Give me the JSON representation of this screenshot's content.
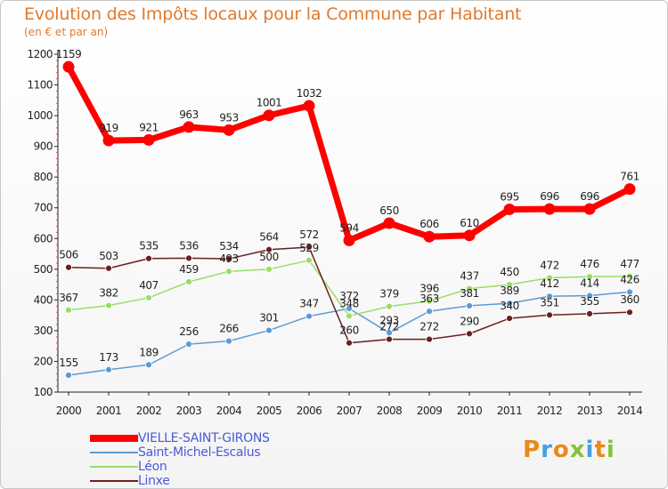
{
  "header": {
    "title": "Evolution des Impôts locaux pour la Commune par Habitant",
    "subtitle": "(en € et par an)"
  },
  "logo": {
    "text": "Proxiti",
    "letters": [
      {
        "ch": "P",
        "color": "#e88a1a"
      },
      {
        "ch": "r",
        "color": "#4aa0dc"
      },
      {
        "ch": "o",
        "color": "#e88a1a"
      },
      {
        "ch": "x",
        "color": "#86c23a"
      },
      {
        "ch": "i",
        "color": "#4aa0dc"
      },
      {
        "ch": "t",
        "color": "#e88a1a"
      },
      {
        "ch": "i",
        "color": "#86c23a"
      }
    ]
  },
  "chart_data": {
    "type": "line",
    "title": "Evolution des Impôts locaux pour la Commune par Habitant",
    "subtitle": "(en € et par an)",
    "x": [
      "2000",
      "2001",
      "2002",
      "2003",
      "2004",
      "2005",
      "2006",
      "2007",
      "2008",
      "2009",
      "2010",
      "2011",
      "2012",
      "2013",
      "2014"
    ],
    "ylim": [
      100,
      1200
    ],
    "yticks": [
      100,
      200,
      300,
      400,
      500,
      600,
      700,
      800,
      900,
      1000,
      1100,
      1200
    ],
    "grid": false,
    "legend": "bottom-left",
    "series": [
      {
        "name": "VIELLE-SAINT-GIRONS",
        "color": "#ff0000",
        "width": 7,
        "values": [
          1159,
          919,
          921,
          963,
          953,
          1001,
          1032,
          594,
          650,
          606,
          610,
          695,
          696,
          696,
          761
        ]
      },
      {
        "name": "Saint-Michel-Escalus",
        "color": "#5b9bd5",
        "width": 1.5,
        "values": [
          155,
          173,
          189,
          256,
          266,
          301,
          347,
          372,
          293,
          363,
          381,
          389,
          412,
          414,
          426
        ]
      },
      {
        "name": "Léon",
        "color": "#99dd66",
        "width": 1.5,
        "values": [
          367,
          382,
          407,
          459,
          493,
          500,
          529,
          348,
          379,
          396,
          437,
          450,
          472,
          476,
          477
        ]
      },
      {
        "name": "Linxe",
        "color": "#6b1f1f",
        "width": 1.5,
        "values": [
          506,
          503,
          535,
          536,
          534,
          564,
          572,
          260,
          272,
          272,
          290,
          340,
          351,
          355,
          360
        ]
      }
    ]
  }
}
